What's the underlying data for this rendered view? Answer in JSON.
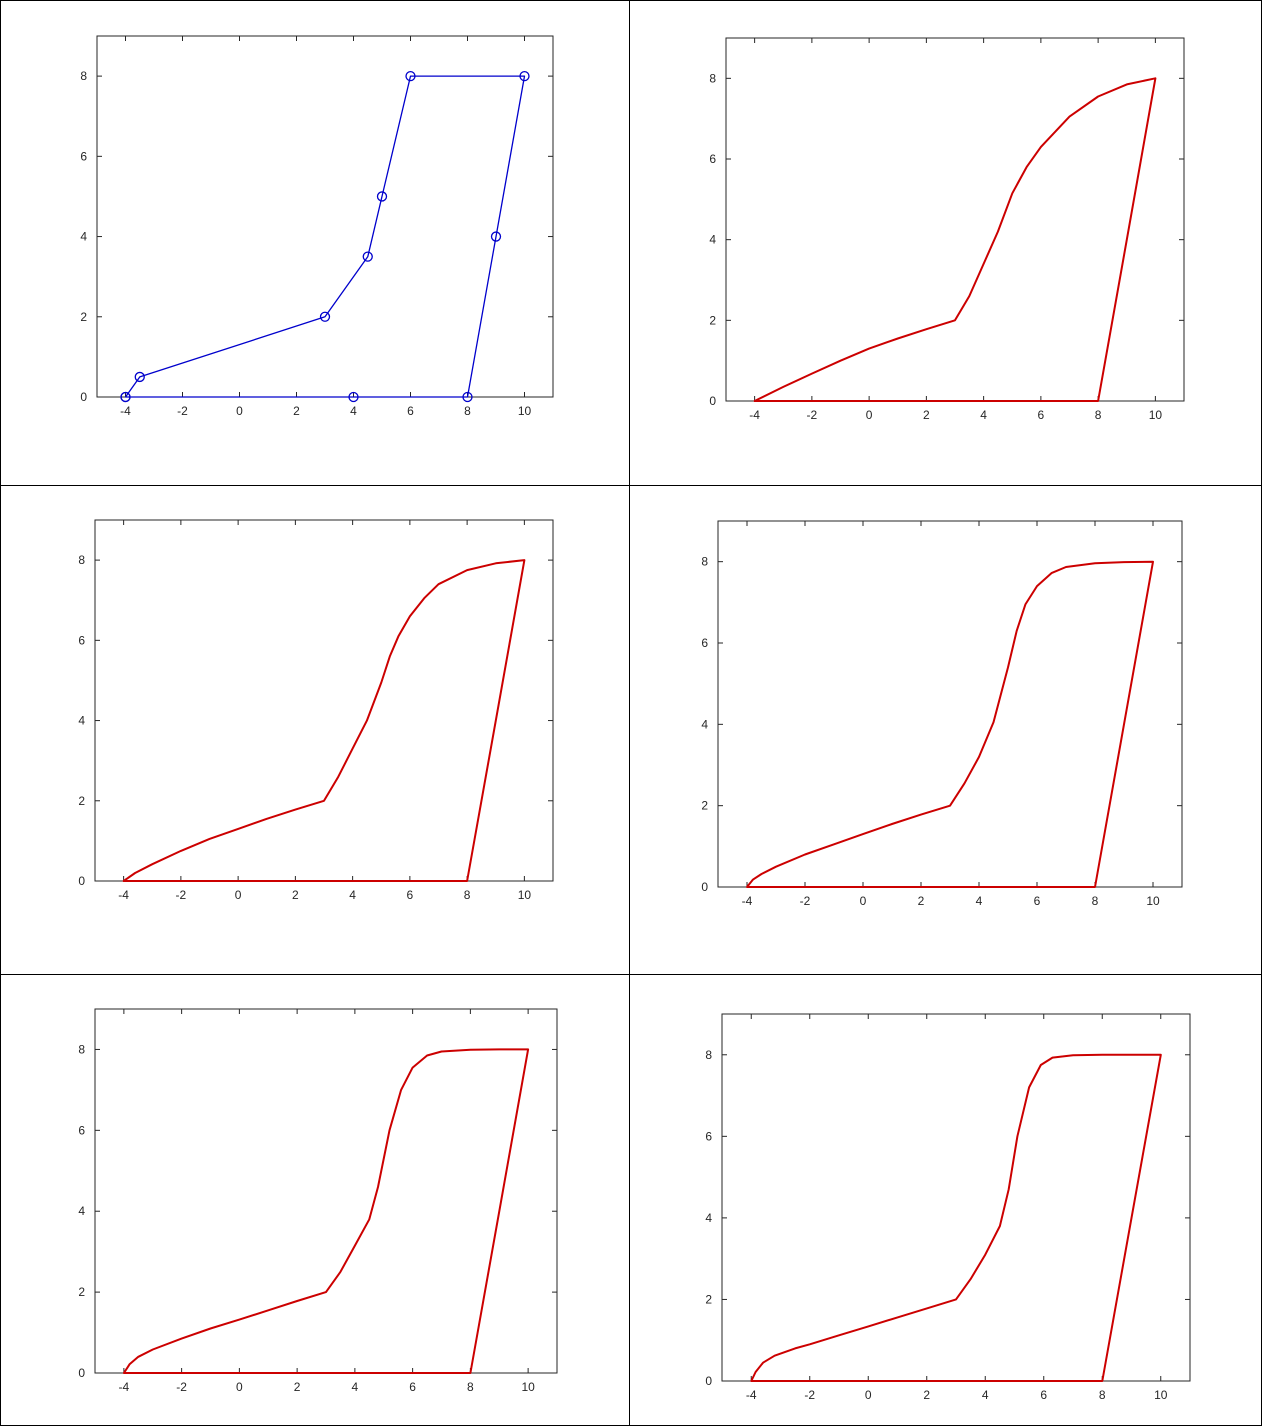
{
  "chart_data": [
    {
      "type": "line",
      "title": "",
      "xlabel": "",
      "ylabel": "",
      "xlim": [
        -5,
        11
      ],
      "ylim": [
        0,
        9
      ],
      "xticks": [
        "-4",
        "-2",
        "0",
        "2",
        "4",
        "6",
        "8",
        "10"
      ],
      "yticks": [
        "0",
        "2",
        "4",
        "6",
        "8"
      ],
      "grid": false,
      "color": "#0000cc",
      "markers": "circle",
      "series": [
        {
          "x": [
            -4,
            -3.5,
            3,
            4.5,
            5,
            6,
            10,
            9,
            8,
            4,
            -4
          ],
          "y": [
            0,
            0.5,
            2,
            3.5,
            5,
            8,
            8,
            4,
            0,
            0,
            0
          ]
        }
      ]
    },
    {
      "type": "line",
      "title": "",
      "xlabel": "",
      "ylabel": "",
      "xlim": [
        -5,
        11
      ],
      "ylim": [
        0,
        9
      ],
      "xticks": [
        "-4",
        "-2",
        "0",
        "2",
        "4",
        "6",
        "8",
        "10"
      ],
      "yticks": [
        "0",
        "2",
        "4",
        "6",
        "8"
      ],
      "grid": false,
      "color": "#cc0000",
      "series": [
        {
          "x": [
            -4,
            -3,
            -2,
            -1,
            0,
            1,
            2,
            3,
            3.5,
            4,
            4.5,
            5,
            5.5,
            6,
            7,
            8,
            9,
            10,
            9,
            8,
            4,
            -4
          ],
          "y": [
            0,
            0.35,
            0.68,
            1.0,
            1.3,
            1.55,
            1.78,
            2.0,
            2.6,
            3.4,
            4.2,
            5.15,
            5.8,
            6.3,
            7.05,
            7.55,
            7.85,
            8.0,
            4.0,
            0,
            0,
            0
          ]
        }
      ]
    },
    {
      "type": "line",
      "title": "",
      "xlabel": "",
      "ylabel": "",
      "xlim": [
        -5,
        11
      ],
      "ylim": [
        0,
        9
      ],
      "xticks": [
        "-4",
        "-2",
        "0",
        "2",
        "4",
        "6",
        "8",
        "10"
      ],
      "yticks": [
        "0",
        "2",
        "4",
        "6",
        "8"
      ],
      "grid": false,
      "color": "#cc0000",
      "series": [
        {
          "x": [
            -4,
            -3.6,
            -3,
            -2,
            -1,
            0,
            1,
            2,
            3,
            3.5,
            4,
            4.5,
            5,
            5.3,
            5.6,
            6,
            6.5,
            7,
            8,
            9,
            10,
            9,
            8,
            4,
            -4
          ],
          "y": [
            0,
            0.2,
            0.42,
            0.75,
            1.05,
            1.3,
            1.55,
            1.78,
            2.0,
            2.6,
            3.3,
            4.0,
            4.95,
            5.6,
            6.1,
            6.6,
            7.05,
            7.4,
            7.75,
            7.92,
            8.0,
            4.0,
            0,
            0,
            0
          ]
        }
      ]
    },
    {
      "type": "line",
      "title": "",
      "xlabel": "",
      "ylabel": "",
      "xlim": [
        -5,
        11
      ],
      "ylim": [
        0,
        9
      ],
      "xticks": [
        "-4",
        "-2",
        "0",
        "2",
        "4",
        "6",
        "8",
        "10"
      ],
      "yticks": [
        "0",
        "2",
        "4",
        "6",
        "8"
      ],
      "grid": false,
      "color": "#cc0000",
      "series": [
        {
          "x": [
            -4,
            -3.8,
            -3.5,
            -3,
            -2,
            -1,
            0,
            1,
            2,
            3,
            3.5,
            4,
            4.5,
            5,
            5.3,
            5.6,
            6,
            6.5,
            7,
            8,
            9,
            10,
            9,
            8,
            4,
            -4
          ],
          "y": [
            0,
            0.18,
            0.32,
            0.5,
            0.8,
            1.05,
            1.3,
            1.55,
            1.78,
            2.0,
            2.55,
            3.2,
            4.05,
            5.4,
            6.3,
            6.95,
            7.4,
            7.72,
            7.87,
            7.96,
            7.99,
            8.0,
            4.0,
            0,
            0,
            0
          ]
        }
      ]
    },
    {
      "type": "line",
      "title": "",
      "xlabel": "",
      "ylabel": "",
      "xlim": [
        -5,
        11
      ],
      "ylim": [
        0,
        9
      ],
      "xticks": [
        "-4",
        "-2",
        "0",
        "2",
        "4",
        "6",
        "8",
        "10"
      ],
      "yticks": [
        "0",
        "2",
        "4",
        "6",
        "8"
      ],
      "grid": false,
      "color": "#cc0000",
      "series": [
        {
          "x": [
            -4,
            -3.8,
            -3.5,
            -3,
            -2,
            -1,
            0,
            1,
            2,
            3,
            3.5,
            4,
            4.5,
            4.8,
            5.2,
            5.6,
            6,
            6.5,
            7,
            8,
            9,
            10,
            9,
            8,
            4,
            -4
          ],
          "y": [
            0,
            0.22,
            0.4,
            0.58,
            0.85,
            1.1,
            1.32,
            1.55,
            1.78,
            2.0,
            2.5,
            3.15,
            3.8,
            4.6,
            6.0,
            7.0,
            7.55,
            7.85,
            7.95,
            7.99,
            8.0,
            8.0,
            4.0,
            0,
            0,
            0
          ]
        }
      ]
    },
    {
      "type": "line",
      "title": "",
      "xlabel": "",
      "ylabel": "",
      "xlim": [
        -5,
        11
      ],
      "ylim": [
        0,
        9
      ],
      "xticks": [
        "-4",
        "-2",
        "0",
        "2",
        "4",
        "6",
        "8",
        "10"
      ],
      "yticks": [
        "0",
        "2",
        "4",
        "6",
        "8"
      ],
      "grid": false,
      "color": "#cc0000",
      "series": [
        {
          "x": [
            -4,
            -3.85,
            -3.6,
            -3.2,
            -2.5,
            -2,
            -1,
            0,
            1,
            2,
            3,
            3.5,
            4,
            4.5,
            4.8,
            5.1,
            5.5,
            5.9,
            6.3,
            7,
            8,
            9,
            10,
            9,
            8,
            4,
            -4
          ],
          "y": [
            0,
            0.22,
            0.45,
            0.62,
            0.8,
            0.9,
            1.12,
            1.34,
            1.56,
            1.78,
            2.0,
            2.5,
            3.1,
            3.8,
            4.7,
            6.0,
            7.2,
            7.75,
            7.93,
            7.99,
            8.0,
            8.0,
            8.0,
            4.0,
            0,
            0,
            0
          ]
        }
      ]
    }
  ]
}
